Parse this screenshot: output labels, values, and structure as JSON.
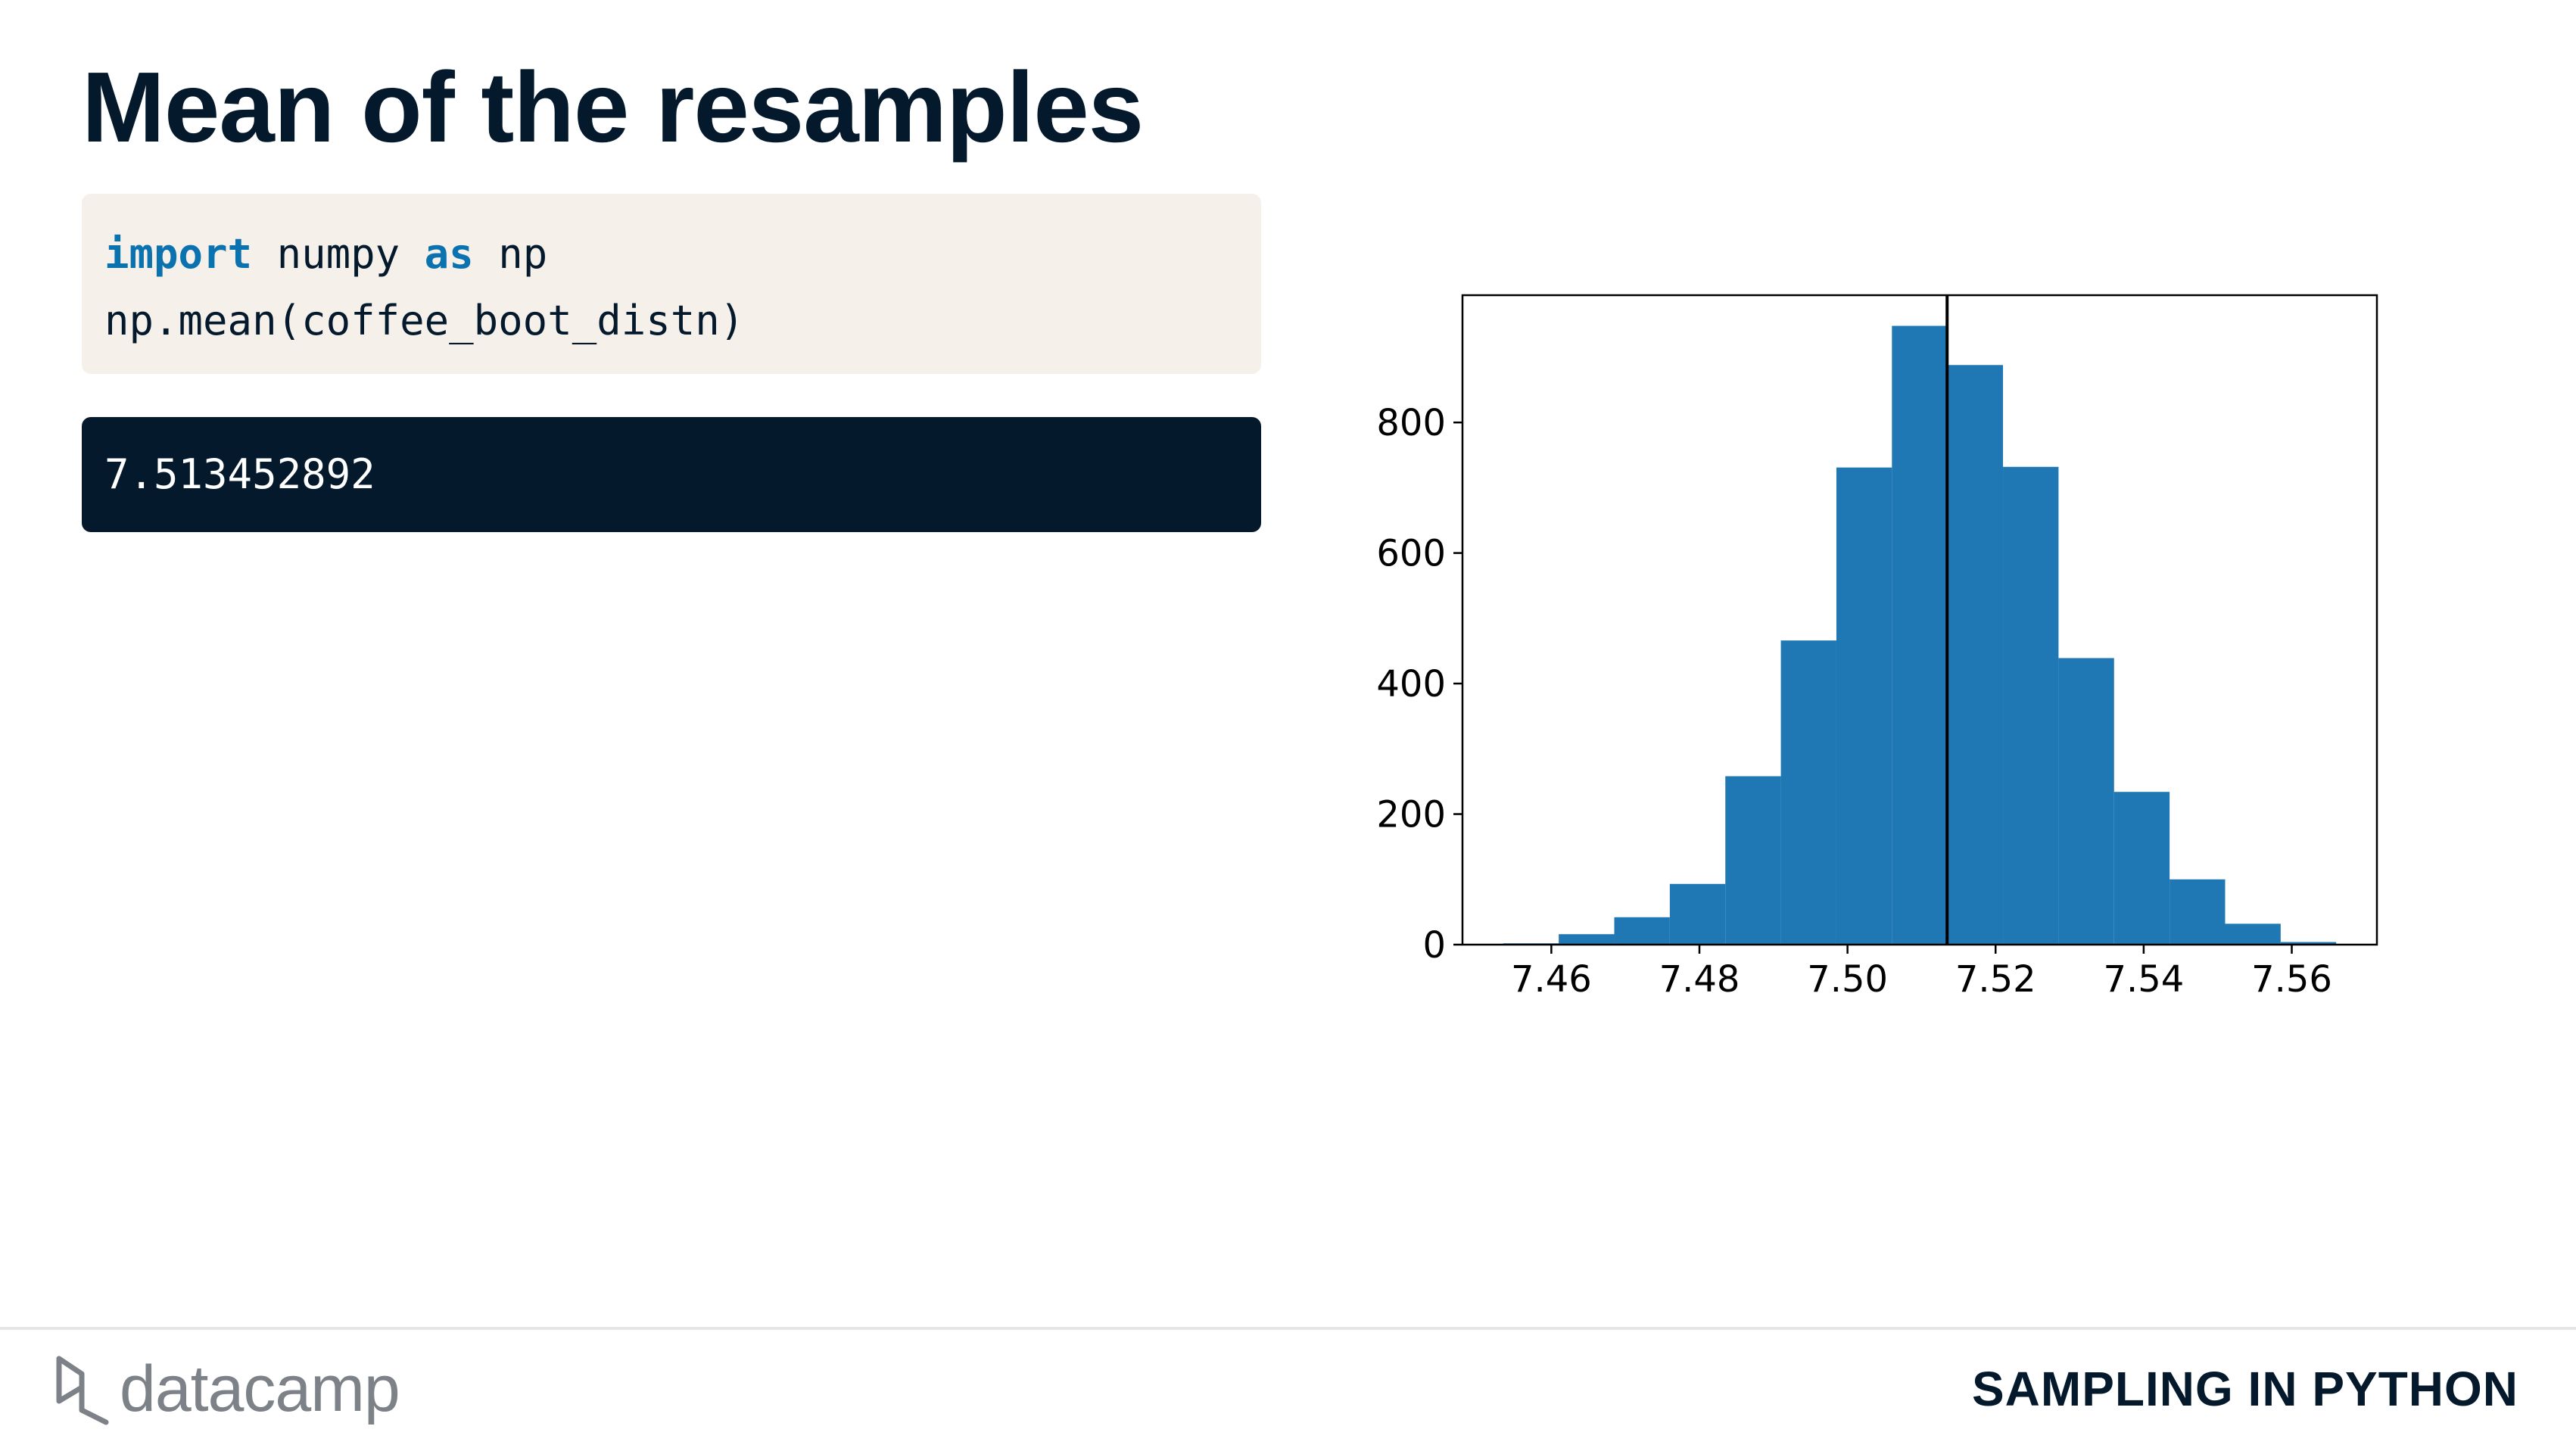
{
  "slide": {
    "title": "Mean of the resamples",
    "course_name": "SAMPLING IN PYTHON",
    "brand": "datacamp"
  },
  "code": {
    "line1": {
      "kw1": "import",
      "t1": " numpy ",
      "kw2": "as",
      "t2": " np"
    },
    "line2": "np.mean(coffee_boot_distn)"
  },
  "output": {
    "text": "7.513452892"
  },
  "colors": {
    "title": "#05192d",
    "keyword": "#0b72b0",
    "code_bg": "#f5f1ea",
    "output_bg": "#05192d",
    "bar": "#1f77b4",
    "mean_line": "#000000"
  },
  "chart_data": {
    "type": "bar",
    "subtype": "histogram",
    "bins": [
      {
        "x0": 7.4535,
        "x1": 7.461,
        "count": 2
      },
      {
        "x0": 7.461,
        "x1": 7.4685,
        "count": 16
      },
      {
        "x0": 7.4685,
        "x1": 7.476,
        "count": 42
      },
      {
        "x0": 7.476,
        "x1": 7.4835,
        "count": 93
      },
      {
        "x0": 7.4835,
        "x1": 7.491,
        "count": 258
      },
      {
        "x0": 7.491,
        "x1": 7.4985,
        "count": 466
      },
      {
        "x0": 7.4985,
        "x1": 7.506,
        "count": 731
      },
      {
        "x0": 7.506,
        "x1": 7.5135,
        "count": 948
      },
      {
        "x0": 7.5135,
        "x1": 7.521,
        "count": 888
      },
      {
        "x0": 7.521,
        "x1": 7.5285,
        "count": 732
      },
      {
        "x0": 7.5285,
        "x1": 7.536,
        "count": 439
      },
      {
        "x0": 7.536,
        "x1": 7.5435,
        "count": 234
      },
      {
        "x0": 7.5435,
        "x1": 7.551,
        "count": 100
      },
      {
        "x0": 7.551,
        "x1": 7.5585,
        "count": 32
      },
      {
        "x0": 7.5585,
        "x1": 7.566,
        "count": 4
      }
    ],
    "vline": 7.513452892,
    "xlim": [
      7.448,
      7.5715
    ],
    "ylim": [
      0,
      995
    ],
    "xticks": [
      7.46,
      7.48,
      7.5,
      7.52,
      7.54,
      7.56
    ],
    "xtick_labels": [
      "7.46",
      "7.48",
      "7.50",
      "7.52",
      "7.54",
      "7.56"
    ],
    "yticks": [
      0,
      200,
      400,
      600,
      800
    ],
    "ytick_labels": [
      "0",
      "200",
      "400",
      "600",
      "800"
    ],
    "title": "",
    "xlabel": "",
    "ylabel": "",
    "grid": false,
    "legend": "none"
  }
}
